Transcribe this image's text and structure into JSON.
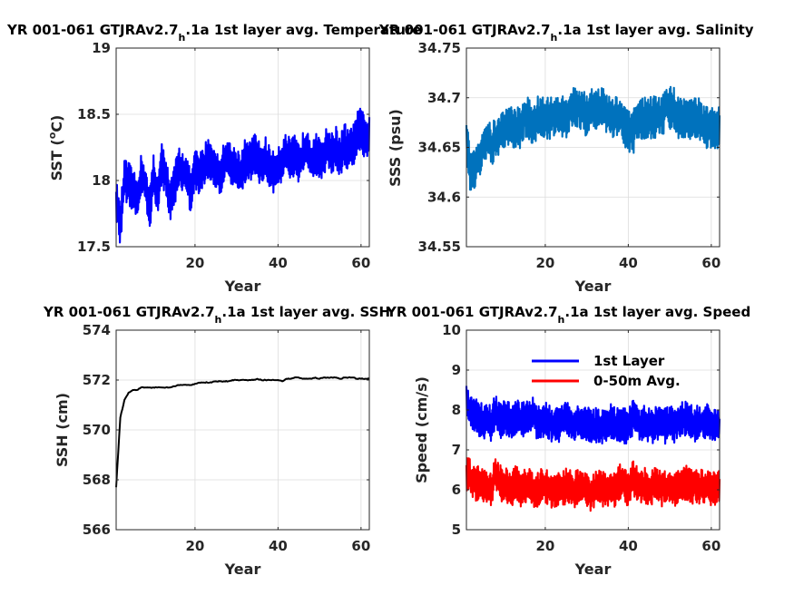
{
  "chart_data": [
    {
      "type": "line",
      "title_main": "YR 001-061 GTJRAv2.7",
      "title_sub": "h",
      "title_rest": ".1a 1st layer avg. Temperature",
      "xlabel": "Year",
      "ylabel": "SST (",
      "ylabel_sup": "o",
      "ylabel_end": "C)",
      "xlim": [
        1,
        62
      ],
      "ylim": [
        17.5,
        19
      ],
      "xticks": [
        20,
        40,
        60
      ],
      "yticks": [
        17.5,
        18,
        18.5,
        19
      ],
      "ytick_labels": [
        "17.5",
        "18",
        "18.5",
        "19"
      ],
      "grid": true,
      "series": [
        {
          "color": "#0000ff",
          "values": [
            17.85,
            17.65,
            18.0,
            17.98,
            17.92,
            17.86,
            18.03,
            17.98,
            17.75,
            18.05,
            17.85,
            18.12,
            18.05,
            17.82,
            17.95,
            18.1,
            18.08,
            18.02,
            17.9,
            18.08,
            18.05,
            18.08,
            18.18,
            18.15,
            18.05,
            18.05,
            18.12,
            18.16,
            18.1,
            18.1,
            18.05,
            18.15,
            18.12,
            18.2,
            18.18,
            18.1,
            18.17,
            18.1,
            18.05,
            18.12,
            18.15,
            18.2,
            18.15,
            18.18,
            18.12,
            18.2,
            18.28,
            18.15,
            18.22,
            18.15,
            18.2,
            18.25,
            18.2,
            18.25,
            18.18,
            18.28,
            18.22,
            18.25,
            18.35,
            18.4,
            18.3,
            18.35
          ]
        }
      ]
    },
    {
      "type": "line",
      "title_main": "YR 001-061 GTJRAv2.7",
      "title_sub": "h",
      "title_rest": ".1a 1st layer avg. Salinity",
      "xlabel": "Year",
      "ylabel": "SSS (psu)",
      "xlim": [
        1,
        62
      ],
      "ylim": [
        34.55,
        34.75
      ],
      "xticks": [
        20,
        40,
        60
      ],
      "yticks": [
        34.55,
        34.6,
        34.65,
        34.7,
        34.75
      ],
      "ytick_labels": [
        "34.55",
        "34.6",
        "34.65",
        "34.7",
        "34.75"
      ],
      "grid": true,
      "series": [
        {
          "color": "#0072bd",
          "values": [
            34.66,
            34.62,
            34.63,
            34.64,
            34.65,
            34.66,
            34.65,
            34.66,
            34.66,
            34.67,
            34.67,
            34.67,
            34.67,
            34.67,
            34.68,
            34.68,
            34.67,
            34.68,
            34.68,
            34.68,
            34.68,
            34.68,
            34.68,
            34.68,
            34.68,
            34.69,
            34.69,
            34.69,
            34.69,
            34.68,
            34.69,
            34.69,
            34.69,
            34.69,
            34.68,
            34.68,
            34.68,
            34.68,
            34.67,
            34.67,
            34.66,
            34.68,
            34.68,
            34.68,
            34.68,
            34.68,
            34.68,
            34.68,
            34.69,
            34.69,
            34.69,
            34.68,
            34.68,
            34.68,
            34.68,
            34.68,
            34.68,
            34.67,
            34.67,
            34.67,
            34.67,
            34.67
          ]
        }
      ]
    },
    {
      "type": "line",
      "title_main": "YR 001-061 GTJRAv2.7",
      "title_sub": "h",
      "title_rest": ".1a 1st layer avg. SSH",
      "xlabel": "Year",
      "ylabel": "SSH (cm)",
      "xlim": [
        1,
        62
      ],
      "ylim": [
        566,
        574
      ],
      "xticks": [
        20,
        40,
        60
      ],
      "yticks": [
        566,
        568,
        570,
        572,
        574
      ],
      "ytick_labels": [
        "566",
        "568",
        "570",
        "572",
        "574"
      ],
      "grid": true,
      "series": [
        {
          "color": "#000000",
          "values": [
            567.7,
            570.5,
            571.2,
            571.5,
            571.6,
            571.6,
            571.7,
            571.7,
            571.7,
            571.7,
            571.7,
            571.7,
            571.7,
            571.7,
            571.75,
            571.8,
            571.8,
            571.8,
            571.8,
            571.85,
            571.9,
            571.9,
            571.9,
            571.9,
            571.95,
            571.95,
            571.95,
            571.95,
            572.0,
            572.0,
            572.0,
            572.0,
            572.0,
            572.0,
            572.05,
            572.0,
            572.0,
            572.0,
            572.0,
            572.0,
            571.95,
            572.05,
            572.05,
            572.1,
            572.1,
            572.05,
            572.05,
            572.05,
            572.1,
            572.05,
            572.1,
            572.1,
            572.1,
            572.1,
            572.05,
            572.1,
            572.1,
            572.1,
            572.05,
            572.05,
            572.05,
            572.05
          ]
        }
      ]
    },
    {
      "type": "line",
      "title_main": "YR 001-061 GTJRAv2.7",
      "title_sub": "h",
      "title_rest": ".1a 1st layer avg. Speed",
      "xlabel": "Year",
      "ylabel": "Speed (cm/s)",
      "xlim": [
        1,
        62
      ],
      "ylim": [
        5,
        10
      ],
      "xticks": [
        20,
        40,
        60
      ],
      "yticks": [
        5,
        6,
        7,
        8,
        9,
        10
      ],
      "ytick_labels": [
        "5",
        "6",
        "7",
        "8",
        "9",
        "10"
      ],
      "grid": true,
      "legend_location": "top-right",
      "series": [
        {
          "name": "1st Layer",
          "color": "#0000ff",
          "values": [
            8.2,
            8.0,
            7.9,
            7.8,
            7.7,
            7.8,
            7.6,
            8.0,
            7.7,
            7.8,
            7.8,
            7.6,
            7.9,
            7.7,
            7.8,
            7.8,
            7.9,
            7.7,
            7.7,
            7.8,
            7.7,
            7.6,
            7.6,
            7.7,
            7.9,
            7.7,
            7.6,
            7.7,
            7.6,
            7.7,
            7.6,
            7.6,
            7.6,
            7.6,
            7.7,
            7.7,
            7.6,
            7.6,
            7.6,
            7.6,
            7.8,
            7.8,
            7.6,
            7.7,
            7.6,
            7.6,
            7.7,
            7.6,
            7.6,
            7.7,
            7.6,
            7.7,
            7.8,
            7.8,
            7.7,
            7.6,
            7.7,
            7.7,
            7.7,
            7.6,
            7.6,
            7.6
          ]
        },
        {
          "name": "0-50m Avg.",
          "color": "#ff0000",
          "values": [
            6.4,
            6.3,
            6.1,
            6.2,
            6.1,
            6.0,
            6.0,
            6.5,
            6.2,
            6.1,
            6.1,
            6.0,
            6.2,
            6.0,
            6.1,
            6.1,
            6.0,
            6.0,
            6.1,
            6.1,
            6.0,
            6.0,
            6.0,
            6.0,
            6.1,
            6.1,
            6.0,
            6.1,
            6.0,
            6.0,
            5.9,
            6.0,
            6.1,
            6.0,
            6.0,
            6.0,
            6.0,
            6.2,
            6.2,
            6.0,
            6.3,
            6.2,
            6.1,
            6.1,
            6.0,
            6.1,
            6.1,
            6.0,
            6.1,
            6.1,
            6.0,
            6.1,
            6.1,
            6.2,
            6.1,
            6.1,
            6.0,
            6.1,
            6.1,
            6.0,
            6.0,
            6.1
          ]
        }
      ]
    }
  ]
}
